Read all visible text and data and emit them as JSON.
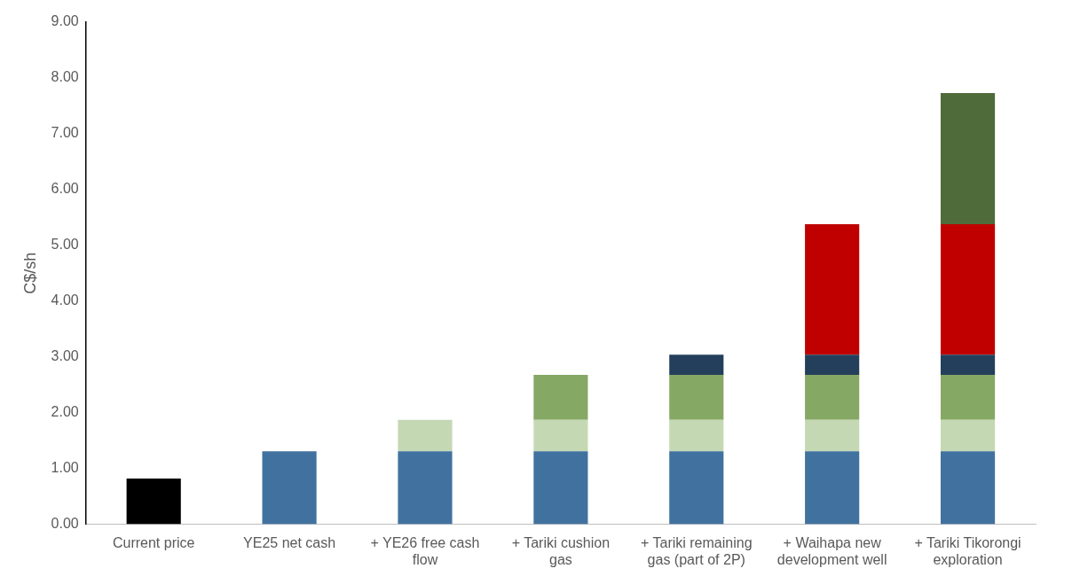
{
  "chart_data": {
    "type": "bar",
    "stacked": true,
    "ylabel": "C$/sh",
    "grid": false,
    "legend": false,
    "categories": [
      "Current price",
      "YE25 net cash",
      "+ YE26 free cash flow",
      "+ Tariki cushion gas",
      "+ Tariki remaining gas (part of 2P)",
      "+ Waihapa new development well",
      "+ Tariki Tikorongi exploration"
    ],
    "ylim": [
      0,
      9
    ],
    "yticks": [
      {
        "value": 0,
        "label": "0.00"
      },
      {
        "value": 1,
        "label": "1.00"
      },
      {
        "value": 2,
        "label": "2.00"
      },
      {
        "value": 3,
        "label": "3.00"
      },
      {
        "value": 4,
        "label": "4.00"
      },
      {
        "value": 5,
        "label": "5.00"
      },
      {
        "value": 6,
        "label": "6.00"
      },
      {
        "value": 7,
        "label": "7.00"
      },
      {
        "value": 8,
        "label": "8.00"
      },
      {
        "value": 9,
        "label": "9.00"
      }
    ],
    "series": [
      {
        "color": "#000000",
        "values": [
          0.82,
          null,
          null,
          null,
          null,
          null,
          null
        ]
      },
      {
        "color": "#41729f",
        "values": [
          null,
          1.31,
          1.31,
          1.31,
          1.31,
          1.31,
          1.31
        ]
      },
      {
        "color": "#c5d8b4",
        "values": [
          null,
          null,
          0.56,
          0.56,
          0.56,
          0.56,
          0.56
        ]
      },
      {
        "color": "#86a865",
        "values": [
          null,
          null,
          null,
          0.81,
          0.81,
          0.81,
          0.81
        ]
      },
      {
        "color": "#243f5b",
        "values": [
          null,
          null,
          null,
          null,
          0.36,
          0.36,
          0.36
        ]
      },
      {
        "color": "#c00000",
        "values": [
          null,
          null,
          null,
          null,
          null,
          2.34,
          2.34
        ]
      },
      {
        "color": "#4f6b3a",
        "values": [
          null,
          null,
          null,
          null,
          null,
          null,
          2.35
        ]
      }
    ]
  }
}
